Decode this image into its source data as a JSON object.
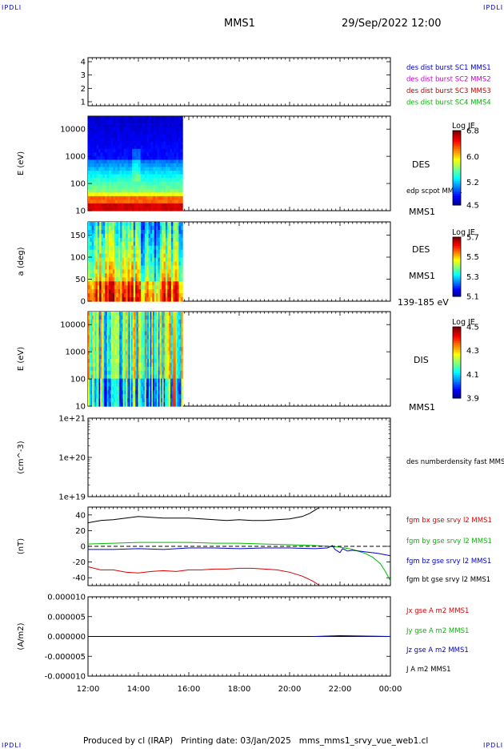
{
  "header": {
    "logo_left": "IPDLI",
    "logo_right": "IPDLI",
    "logo_bottom_left": "IPDLI",
    "logo_bottom_right": "IPDLI",
    "title": "MMS1",
    "date": "29/Sep/2022 12:00"
  },
  "footer": {
    "text": "Produced by cl (IRAP)   Printing date: 03/Jan/2025   mms_mms1_srvy_vue_web1.cl"
  },
  "time_axis": {
    "ticks": [
      "12:00",
      "14:00",
      "16:00",
      "18:00",
      "20:00",
      "22:00",
      "00:00"
    ],
    "start_hour": 12,
    "end_hour": 24
  },
  "chart_data": [
    {
      "type": "line",
      "id": "burst",
      "yticks": [
        "1",
        "2",
        "3",
        "4"
      ],
      "ylim": [
        0.7,
        4.3
      ],
      "legend": [
        {
          "text": "des dist burst SC1 MMS1",
          "color": "#0000cc"
        },
        {
          "text": "des dist burst SC2 MMS2",
          "color": "#cc00cc"
        },
        {
          "text": "des dist burst SC3 MMS3",
          "color": "#cc0000"
        },
        {
          "text": "des dist burst SC4 MMS4",
          "color": "#00bb00"
        }
      ],
      "series": []
    },
    {
      "type": "heatmap",
      "id": "des-energy",
      "ylabel": "E (eV)",
      "yticks": [
        "10",
        "100",
        "1000",
        "10000"
      ],
      "ylog": true,
      "ylim": [
        10,
        30000
      ],
      "xlim_data_hours": [
        12,
        15.75
      ],
      "label": "DES",
      "sublabel": "edp scpot MMS1",
      "tail_label": "MMS1",
      "colorbar": {
        "title": "Log JE",
        "ticks": [
          "6.8",
          "6.0",
          "5.2",
          "4.5"
        ],
        "range": [
          4.5,
          6.8
        ]
      }
    },
    {
      "type": "heatmap",
      "id": "des-pitch",
      "ylabel": "a (deg)",
      "yticks": [
        "0",
        "50",
        "100",
        "150"
      ],
      "ylim": [
        0,
        180
      ],
      "xlim_data_hours": [
        12,
        15.75
      ],
      "label": "DES",
      "sublabel": "MMS1",
      "tail_label": "139-185 eV",
      "colorbar": {
        "title": "Log JE",
        "ticks": [
          "5.7",
          "5.5",
          "5.3",
          "5.1"
        ],
        "range": [
          5.1,
          5.7
        ]
      }
    },
    {
      "type": "heatmap",
      "id": "dis-energy",
      "ylabel": "E (eV)",
      "yticks": [
        "10",
        "100",
        "1000",
        "10000"
      ],
      "ylog": true,
      "ylim": [
        10,
        30000
      ],
      "xlim_data_hours": [
        12,
        15.75
      ],
      "label": "DIS",
      "tail_label": "MMS1",
      "colorbar": {
        "title": "Log JE",
        "ticks": [
          "4.5",
          "4.3",
          "4.1",
          "3.9"
        ],
        "range": [
          3.9,
          4.5
        ]
      }
    },
    {
      "type": "line",
      "id": "density",
      "ylabel": "(cm^-3)",
      "yticks": [
        "1e+19",
        "1e+20",
        "1e+21"
      ],
      "legend": [
        {
          "text": "des numberdensity fast MMS1",
          "color": "#000000"
        }
      ],
      "series": []
    },
    {
      "type": "line",
      "id": "fgm",
      "ylabel": "(nT)",
      "yticks": [
        "-40",
        "-20",
        "0",
        "20",
        "40"
      ],
      "ylim": [
        -50,
        50
      ],
      "legend": [
        {
          "text": "fgm bx gse srvy l2 MMS1",
          "color": "#dd0000"
        },
        {
          "text": "fgm by gse srvy l2 MMS1",
          "color": "#00bb00"
        },
        {
          "text": "fgm bz gse srvy l2 MMS1",
          "color": "#0000cc"
        },
        {
          "text": "fgm bt gse srvy l2 MMS1",
          "color": "#000000"
        }
      ],
      "series": [
        {
          "color": "#000000",
          "points": [
            [
              12,
              30
            ],
            [
              12.5,
              33
            ],
            [
              13,
              34
            ],
            [
              13.5,
              36
            ],
            [
              14,
              38
            ],
            [
              14.5,
              37
            ],
            [
              15,
              36
            ],
            [
              15.5,
              36
            ],
            [
              16,
              36
            ],
            [
              16.5,
              35
            ],
            [
              17,
              34
            ],
            [
              17.5,
              33
            ],
            [
              18,
              34
            ],
            [
              18.5,
              33
            ],
            [
              19,
              33
            ],
            [
              19.5,
              34
            ],
            [
              20,
              35
            ],
            [
              20.5,
              38
            ],
            [
              20.8,
              42
            ],
            [
              21,
              46
            ],
            [
              21.15,
              49
            ]
          ]
        },
        {
          "color": "#dd0000",
          "points": [
            [
              12,
              -26
            ],
            [
              12.5,
              -30
            ],
            [
              13,
              -30
            ],
            [
              13.5,
              -33
            ],
            [
              14,
              -34
            ],
            [
              14.5,
              -32
            ],
            [
              15,
              -31
            ],
            [
              15.5,
              -32
            ],
            [
              16,
              -30
            ],
            [
              16.5,
              -30
            ],
            [
              17,
              -29
            ],
            [
              17.5,
              -29
            ],
            [
              18,
              -28
            ],
            [
              18.5,
              -28
            ],
            [
              19,
              -29
            ],
            [
              19.5,
              -30
            ],
            [
              20,
              -33
            ],
            [
              20.5,
              -38
            ],
            [
              20.9,
              -44
            ],
            [
              21.15,
              -49
            ]
          ]
        },
        {
          "color": "#00bb00",
          "points": [
            [
              12,
              3
            ],
            [
              13,
              4
            ],
            [
              14,
              5
            ],
            [
              15,
              5
            ],
            [
              16,
              5
            ],
            [
              17,
              4
            ],
            [
              18,
              4
            ],
            [
              19,
              3
            ],
            [
              20,
              2
            ],
            [
              21,
              1
            ],
            [
              21.5,
              0
            ],
            [
              22,
              -1
            ],
            [
              22.5,
              -4
            ],
            [
              23,
              -9
            ],
            [
              23.3,
              -14
            ],
            [
              23.6,
              -22
            ],
            [
              23.8,
              -32
            ],
            [
              24,
              -44
            ]
          ]
        },
        {
          "color": "#0000cc",
          "points": [
            [
              12,
              -4
            ],
            [
              13,
              -4
            ],
            [
              14,
              -3
            ],
            [
              15,
              -4
            ],
            [
              16,
              -2
            ],
            [
              17,
              -2
            ],
            [
              18,
              -3
            ],
            [
              19,
              -2
            ],
            [
              20,
              -2
            ],
            [
              21,
              -3
            ],
            [
              21.5,
              -2
            ],
            [
              21.7,
              1
            ],
            [
              21.8,
              -4
            ],
            [
              22,
              -8
            ],
            [
              22.1,
              -3
            ],
            [
              22.3,
              -6
            ],
            [
              22.5,
              -5
            ],
            [
              23,
              -7
            ],
            [
              23.5,
              -9
            ],
            [
              24,
              -12
            ]
          ]
        }
      ]
    },
    {
      "type": "line",
      "id": "current",
      "ylabel": "(A/m2)",
      "yticks": [
        "-0.000010",
        "-0.000005",
        "0.000000",
        "0.000005",
        "0.000010"
      ],
      "ylim": [
        -1e-05,
        1e-05
      ],
      "legend": [
        {
          "text": "Jx gse A m2 MMS1",
          "color": "#dd0000"
        },
        {
          "text": "Jy gse A m2 MMS1",
          "color": "#00bb00"
        },
        {
          "text": "Jz gse A m2 MMS1",
          "color": "#0000cc"
        },
        {
          "text": "J A m2 MMS1",
          "color": "#000000"
        }
      ],
      "series": [
        {
          "color": "#000000",
          "points": [
            [
              12,
              0
            ],
            [
              24,
              0
            ]
          ]
        },
        {
          "color": "#0000cc",
          "points": [
            [
              21,
              0
            ],
            [
              22,
              2e-07
            ],
            [
              23,
              1e-07
            ],
            [
              24,
              0
            ]
          ]
        }
      ]
    }
  ]
}
